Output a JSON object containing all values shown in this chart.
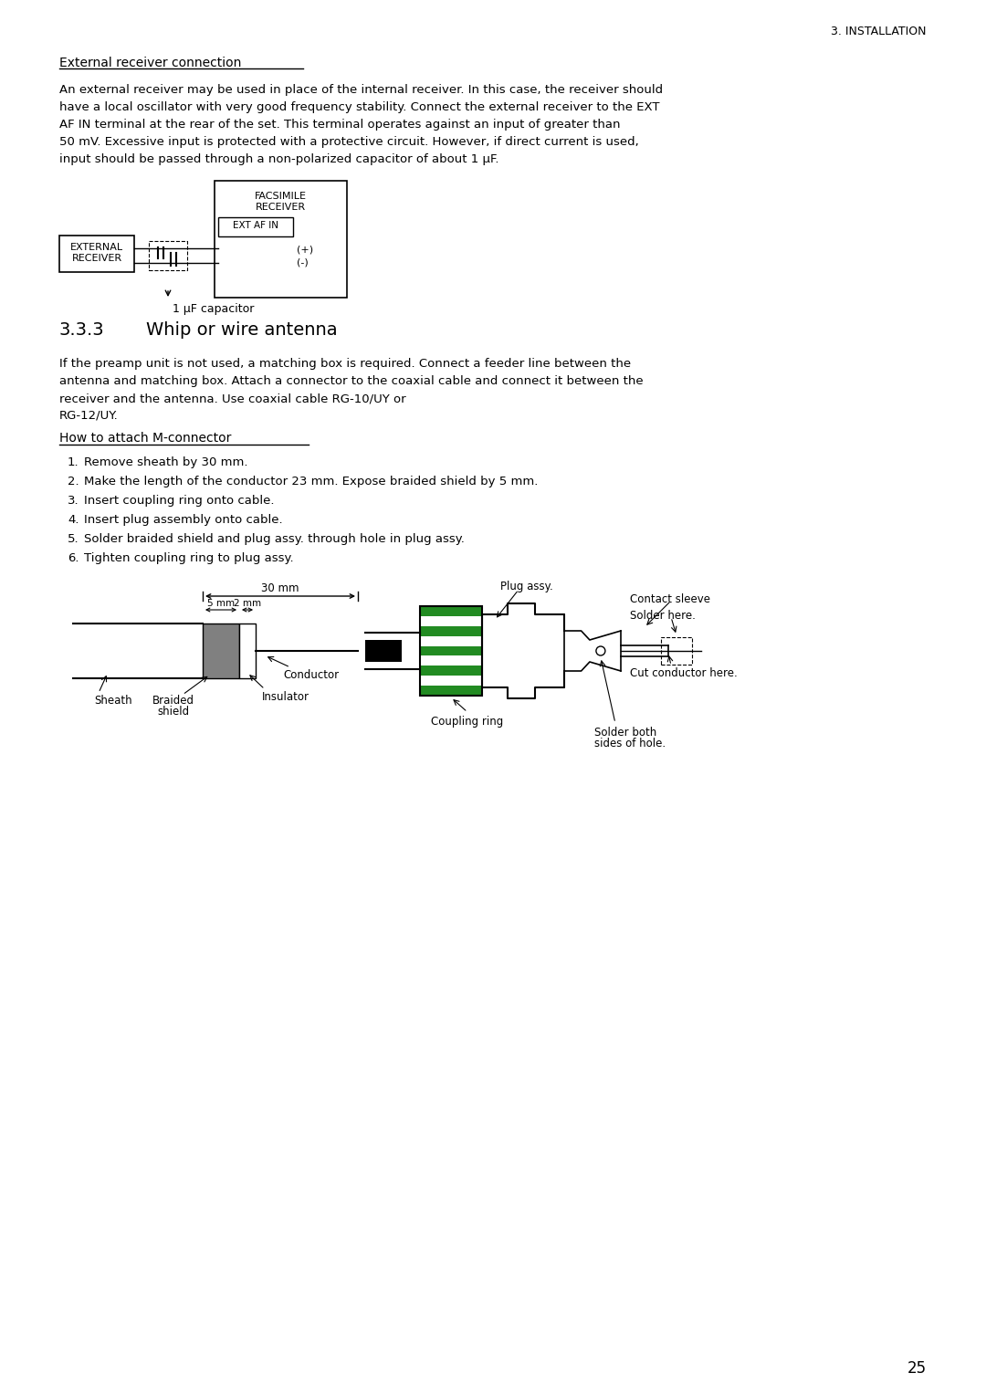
{
  "page_header": "3. INSTALLATION",
  "section_title": "External receiver connection",
  "para1_lines": [
    "An external receiver may be used in place of the internal receiver. In this case, the receiver should",
    "have a local oscillator with very good frequency stability. Connect the external receiver to the EXT",
    "AF IN terminal at the rear of the set. This terminal operates against an input of greater than",
    "50 mV. Excessive input is protected with a protective circuit. However, if direct current is used,",
    "input should be passed through a non-polarized capacitor of about 1 μF."
  ],
  "section2_number": "3.3.3",
  "section2_title": "Whip or wire antenna",
  "para2_lines": [
    "If the preamp unit is not used, a matching box is required. Connect a feeder line between the",
    "antenna and matching box. Attach a connector to the coaxial cable and connect it between the",
    "receiver and the antenna. Use coaxial cable RG-10/UY or",
    "RG-12/UY."
  ],
  "subsection_title": "How to attach M-connector",
  "steps": [
    "Remove sheath by 30 mm.",
    "Make the length of the conductor 23 mm. Expose braided shield by 5 mm.",
    "Insert coupling ring onto cable.",
    "Insert plug assembly onto cable.",
    "Solder braided shield and plug assy. through hole in plug assy.",
    "Tighten coupling ring to plug assy."
  ],
  "page_number": "25",
  "bg_color": "#ffffff",
  "text_color": "#000000",
  "green_color": "#228B22",
  "gray_color": "#808080",
  "cap_label": "1 μF capacitor",
  "facsimile_line1": "FACSIMILE",
  "facsimile_line2": "RECEIVER",
  "ext_af_in": "EXT AF IN",
  "external_line1": "EXTERNAL",
  "external_line2": "RECEIVER",
  "plus_label": "(+)",
  "minus_label": "(-)",
  "sheath_label": "Sheath",
  "braided_line1": "Braided",
  "braided_line2": "shield",
  "insulator_label": "Insulator",
  "conductor_label": "Conductor",
  "dim_30mm": "30 mm",
  "dim_5mm": "5 mm",
  "dim_2mm": "2 mm",
  "plug_assy_label": "Plug assy.",
  "contact_sleeve_label": "Contact sleeve",
  "solder_here_label": "Solder here.",
  "coupling_ring_label": "Coupling ring",
  "solder_both_line1": "Solder both",
  "solder_both_line2": "sides of hole.",
  "cut_conductor_label": "Cut conductor here."
}
